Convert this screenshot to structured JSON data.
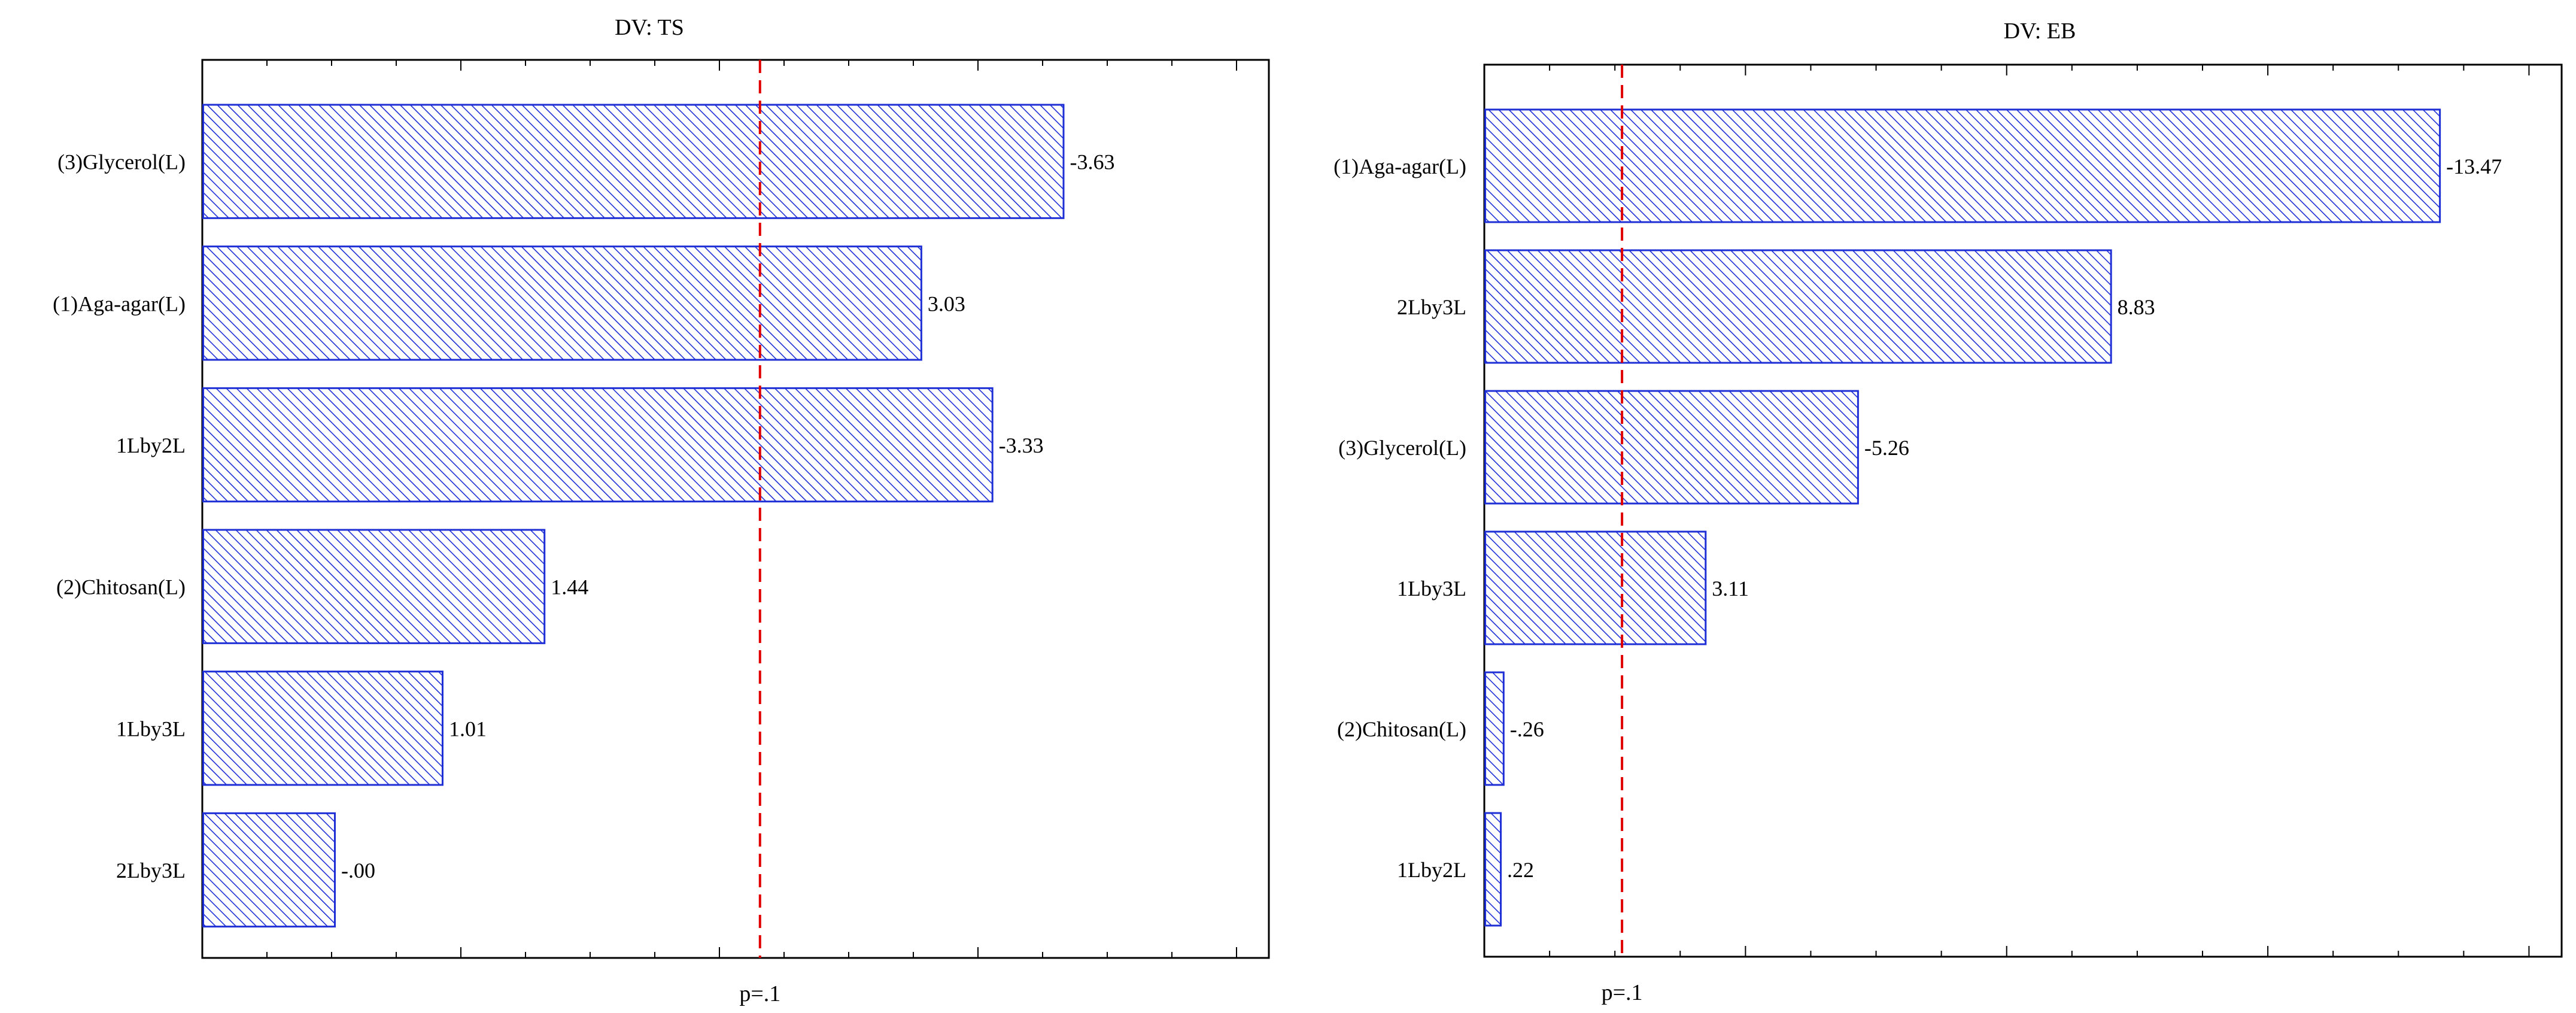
{
  "chart_data": [
    {
      "type": "bar",
      "orientation": "horizontal",
      "title": "DV: TS",
      "xlabel": "p=.1",
      "reference_value": 2.353,
      "max_value": 4.5,
      "categories": [
        "(3)Glycerol(L)",
        "(1)Aga-agar(L)",
        "1Lby2L",
        "(2)Chitosan(L)",
        "1Lby3L",
        "2Lby3L"
      ],
      "values": [
        3.63,
        3.03,
        3.33,
        1.44,
        1.01,
        0.0
      ],
      "data_labels": [
        "-3.63",
        "3.03",
        "-3.33",
        "1.44",
        "1.01",
        "-.00"
      ],
      "bar_fill": "#1f2fd6",
      "reference_color": "#e00000"
    },
    {
      "type": "bar",
      "orientation": "horizontal",
      "title": "DV: EB",
      "xlabel": "p=.1",
      "reference_value": 1.943,
      "max_value": 15.2,
      "categories": [
        "(1)Aga-agar(L)",
        "2Lby3L",
        "(3)Glycerol(L)",
        "1Lby3L",
        "(2)Chitosan(L)",
        "1Lby2L"
      ],
      "values": [
        13.47,
        8.83,
        5.26,
        3.11,
        0.26,
        0.22
      ],
      "data_labels": [
        "-13.47",
        "8.83",
        "-5.26",
        "3.11",
        "-.26",
        ".22"
      ],
      "bar_fill": "#1f2fd6",
      "reference_color": "#e00000"
    }
  ]
}
